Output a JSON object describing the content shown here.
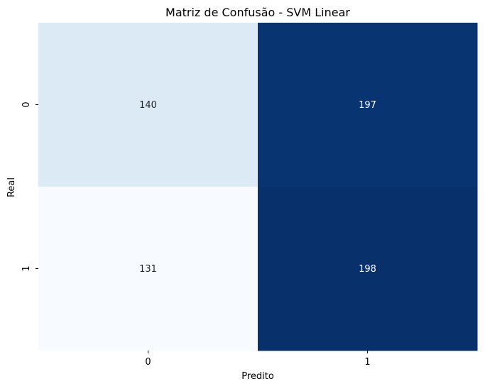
{
  "chart_data": {
    "type": "heatmap",
    "title": "Matriz de Confusão - SVM Linear",
    "xlabel": "Predito",
    "ylabel": "Real",
    "x_categories": [
      "0",
      "1"
    ],
    "y_categories": [
      "0",
      "1"
    ],
    "values": [
      [
        140,
        197
      ],
      [
        131,
        198
      ]
    ],
    "colormap": "Blues",
    "colorbar": false,
    "annotations": true,
    "colors": {
      "light_text": "#ffffff",
      "dark_text": "#262626",
      "axis_text": "#000000"
    }
  }
}
